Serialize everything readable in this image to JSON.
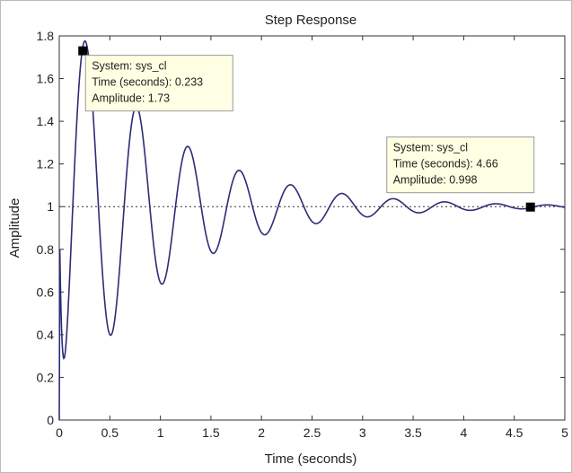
{
  "chart_data": {
    "type": "line",
    "title": "Step Response",
    "xlabel": "Time (seconds)",
    "ylabel": "Amplitude",
    "xlim": [
      0,
      5
    ],
    "ylim": [
      0,
      1.8
    ],
    "x_ticks": [
      "0",
      "0.5",
      "1",
      "1.5",
      "2",
      "2.5",
      "3",
      "3.5",
      "4",
      "4.5",
      "5"
    ],
    "y_ticks": [
      "0",
      "0.2",
      "0.4",
      "0.6",
      "0.8",
      "1",
      "1.2",
      "1.4",
      "1.6",
      "1.8"
    ],
    "grid": false,
    "reference_line": {
      "y": 1,
      "style": "dotted"
    },
    "series": [
      {
        "name": "sys_cl",
        "color": "#2c2c78",
        "model": {
          "final_value": 1,
          "overshoot": 0.73,
          "peak_time": 0.233,
          "oscillation_period": 0.508
        },
        "x": [
          0,
          0.05,
          0.1,
          0.15,
          0.2,
          0.233,
          0.3,
          0.35,
          0.4,
          0.45,
          0.5,
          0.55,
          0.6,
          0.65,
          0.7,
          0.75,
          0.8,
          0.85,
          0.9,
          0.95,
          1.0,
          1.1,
          1.2,
          1.3,
          1.4,
          1.5,
          1.75,
          2.0,
          2.25,
          2.5,
          2.75,
          3.0,
          3.25,
          3.5,
          3.75,
          4.0,
          4.25,
          4.5,
          4.66,
          5.0
        ],
        "y": [
          0,
          0.32,
          0.85,
          1.38,
          1.7,
          1.73,
          1.55,
          1.17,
          0.77,
          0.5,
          0.43,
          0.6,
          0.95,
          1.25,
          1.42,
          1.44,
          1.32,
          1.05,
          0.8,
          0.68,
          0.67,
          0.95,
          1.2,
          1.24,
          1.05,
          0.82,
          1.14,
          0.9,
          1.08,
          0.94,
          1.05,
          0.96,
          1.03,
          0.98,
          1.02,
          0.99,
          1.01,
          0.995,
          0.998,
          1.0
        ]
      }
    ],
    "annotations": [
      {
        "name": "peak",
        "x": 0.233,
        "y": 1.73,
        "lines": [
          "System: sys_cl",
          "Time (seconds): 0.233",
          "Amplitude: 1.73"
        ]
      },
      {
        "name": "settling",
        "x": 4.66,
        "y": 0.998,
        "lines": [
          "System: sys_cl",
          "Time (seconds): 4.66",
          "Amplitude: 0.998"
        ]
      }
    ]
  }
}
